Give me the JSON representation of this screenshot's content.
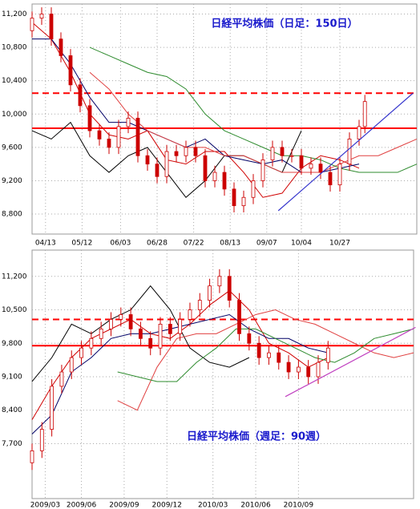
{
  "chart_data": [
    {
      "type": "candlestick",
      "title": "日経平均株価（日足：150日）",
      "x": [
        0,
        5,
        10,
        15,
        20,
        25,
        30,
        35,
        40,
        45,
        50,
        55,
        60,
        65,
        70,
        75,
        80,
        85,
        90,
        95,
        100,
        105,
        110,
        115,
        120,
        125,
        130,
        135,
        140,
        145,
        150,
        155,
        160,
        165,
        170,
        173
      ],
      "open": [
        11000,
        11150,
        11200,
        10900,
        10700,
        10350,
        10100,
        9800,
        9700,
        9600,
        9850,
        9950,
        9500,
        9400,
        9250,
        9550,
        9500,
        9600,
        9500,
        9200,
        9300,
        9100,
        8900,
        9000,
        9200,
        9450,
        9600,
        9500,
        9500,
        9350,
        9400,
        9300,
        9150,
        9400,
        9700,
        9850
      ],
      "high": [
        11230,
        11280,
        11280,
        10980,
        10780,
        10430,
        10180,
        9880,
        9780,
        9930,
        10030,
        10030,
        9580,
        9480,
        9630,
        9630,
        9680,
        9680,
        9580,
        9380,
        9380,
        9180,
        9080,
        9280,
        9530,
        9680,
        9680,
        9580,
        9580,
        9480,
        9480,
        9380,
        9480,
        9780,
        9930,
        10230
      ],
      "low": [
        10920,
        11070,
        10820,
        10620,
        10270,
        10020,
        9720,
        9620,
        9520,
        9520,
        9770,
        9420,
        9320,
        9170,
        9170,
        9420,
        9420,
        9420,
        9120,
        9120,
        9020,
        8820,
        8820,
        8920,
        9120,
        9370,
        9420,
        9420,
        9270,
        9270,
        9220,
        9070,
        9070,
        9320,
        9620,
        9770
      ],
      "close": [
        11150,
        11200,
        10900,
        10700,
        10350,
        10100,
        9800,
        9700,
        9600,
        9850,
        9950,
        9500,
        9400,
        9250,
        9550,
        9500,
        9600,
        9500,
        9200,
        9300,
        9100,
        8900,
        9000,
        9200,
        9450,
        9600,
        9500,
        9500,
        9350,
        9400,
        9300,
        9150,
        9400,
        9700,
        9850,
        10150
      ],
      "series": [
        {
          "color": "#d00000",
          "x": [
            0,
            10,
            20,
            30,
            40,
            50,
            60,
            70,
            80,
            90,
            100,
            110,
            120,
            130,
            140,
            150,
            160,
            170
          ],
          "values": [
            11100,
            10900,
            10500,
            10000,
            9750,
            9700,
            9800,
            9450,
            9400,
            9550,
            9550,
            9300,
            9000,
            9050,
            9350,
            9500,
            9450,
            9350
          ]
        },
        {
          "color": "#000066",
          "x": [
            0,
            10,
            20,
            30,
            40,
            50,
            60,
            70,
            80,
            90,
            100,
            110,
            120,
            130,
            140,
            150,
            160,
            170
          ],
          "values": [
            10900,
            10900,
            10600,
            10200,
            9900,
            9900,
            9800,
            9700,
            9600,
            9700,
            9500,
            9450,
            9400,
            9450,
            9300,
            9300,
            9350,
            9400
          ]
        },
        {
          "color": "#000000",
          "x": [
            0,
            10,
            20,
            30,
            40,
            50,
            60,
            70,
            80,
            90,
            100,
            110,
            120,
            130,
            140
          ],
          "values": [
            9800,
            9700,
            9900,
            9500,
            9300,
            9500,
            9600,
            9300,
            9000,
            9200,
            9500,
            9500,
            9400,
            9300,
            9800
          ]
        },
        {
          "color": "#e04040",
          "x": [
            30,
            40,
            50,
            60,
            70,
            80,
            90,
            100,
            110,
            120,
            130,
            140,
            150,
            160,
            170,
            180,
            190,
            200
          ],
          "values": [
            10500,
            10300,
            10000,
            9800,
            9700,
            9600,
            9600,
            9500,
            9500,
            9400,
            9300,
            9300,
            9300,
            9400,
            9500,
            9500,
            9600,
            9700
          ]
        },
        {
          "color": "#2e8b2e",
          "x": [
            30,
            40,
            50,
            60,
            70,
            80,
            90,
            100,
            110,
            120,
            130,
            140,
            150,
            160,
            170,
            180,
            190,
            200
          ],
          "values": [
            10800,
            10700,
            10600,
            10500,
            10450,
            10300,
            10000,
            9800,
            9700,
            9600,
            9500,
            9500,
            9450,
            9350,
            9300,
            9300,
            9300,
            9400
          ]
        }
      ],
      "reference_lines": [
        {
          "value": 9830,
          "color": "#ff0000",
          "style": "solid"
        },
        {
          "value": 10250,
          "color": "#ff0000",
          "style": "dashed"
        }
      ],
      "trend_line": {
        "color": "#3333cc",
        "x": [
          128,
          198
        ],
        "values": [
          8840,
          10250
        ]
      },
      "xlim": [
        0,
        200
      ],
      "ylim": [
        8560,
        11320
      ],
      "xticks": [
        {
          "value": 7,
          "label": "04/13"
        },
        {
          "value": 26,
          "label": "05/12"
        },
        {
          "value": 46,
          "label": "06/03"
        },
        {
          "value": 65,
          "label": "06/28"
        },
        {
          "value": 84,
          "label": "07/22"
        },
        {
          "value": 103,
          "label": "08/13"
        },
        {
          "value": 122,
          "label": "09/07"
        },
        {
          "value": 140,
          "label": "10/04"
        },
        {
          "value": 160,
          "label": "10/27"
        }
      ],
      "yticks": [
        {
          "value": 11200,
          "label": "11,200"
        },
        {
          "value": 10800,
          "label": "10,800"
        },
        {
          "value": 10400,
          "label": "10,400"
        },
        {
          "value": 10000,
          "label": "10,000"
        },
        {
          "value": 9600,
          "label": "9,600"
        },
        {
          "value": 9200,
          "label": "9,200"
        },
        {
          "value": 8800,
          "label": "8,800"
        }
      ],
      "grid": true
    },
    {
      "type": "candlestick",
      "title": "日経平均株価（週足：90週）",
      "x": [
        0,
        3,
        6,
        9,
        12,
        15,
        18,
        21,
        24,
        27,
        30,
        33,
        36,
        39,
        42,
        45,
        48,
        51,
        54,
        57,
        60,
        63,
        66,
        69,
        72,
        75,
        78,
        81,
        84,
        87,
        90
      ],
      "open": [
        7300,
        7550,
        8000,
        8900,
        9200,
        9500,
        9700,
        9900,
        10100,
        10300,
        10400,
        10100,
        9900,
        9700,
        10200,
        10000,
        10300,
        10500,
        10700,
        11000,
        11200,
        10700,
        10000,
        9800,
        9500,
        9600,
        9400,
        9200,
        9300,
        9100,
        9400
      ],
      "high": [
        7700,
        8150,
        9050,
        9350,
        9650,
        9850,
        10050,
        10250,
        10450,
        10550,
        10550,
        10250,
        10050,
        10350,
        10350,
        10450,
        10650,
        10850,
        11150,
        11350,
        11350,
        10850,
        10150,
        9950,
        9750,
        9750,
        9550,
        9450,
        9450,
        9550,
        9850
      ],
      "low": [
        7150,
        7400,
        7850,
        8750,
        9050,
        9350,
        9550,
        9750,
        9950,
        10150,
        9950,
        9750,
        9550,
        9550,
        9850,
        9850,
        10150,
        10350,
        10550,
        10850,
        10550,
        9850,
        9650,
        9350,
        9350,
        9250,
        9050,
        9050,
        8950,
        8950,
        9250
      ],
      "close": [
        7550,
        8000,
        8900,
        9200,
        9500,
        9700,
        9900,
        10100,
        10300,
        10400,
        10100,
        9900,
        9700,
        10200,
        10000,
        10300,
        10500,
        10700,
        11000,
        11200,
        10700,
        10000,
        9800,
        9500,
        9600,
        9400,
        9200,
        9300,
        9100,
        9400,
        9700
      ],
      "series": [
        {
          "color": "#d00000",
          "x": [
            0,
            6,
            12,
            18,
            24,
            30,
            36,
            42,
            48,
            54,
            60,
            66,
            72,
            78,
            84,
            90
          ],
          "values": [
            8200,
            8900,
            9500,
            9900,
            10100,
            10300,
            10000,
            9900,
            10200,
            10600,
            10900,
            10500,
            9800,
            9600,
            9300,
            9500
          ]
        },
        {
          "color": "#000066",
          "x": [
            0,
            6,
            12,
            18,
            24,
            30,
            36,
            42,
            48,
            54,
            60,
            66,
            72,
            78,
            84,
            90
          ],
          "values": [
            7900,
            8300,
            9200,
            9500,
            9900,
            10000,
            10000,
            10100,
            10200,
            10300,
            10400,
            10100,
            9900,
            9900,
            9700,
            9600
          ]
        },
        {
          "color": "#000000",
          "x": [
            0,
            6,
            12,
            18,
            24,
            30,
            36,
            42,
            48,
            54,
            60,
            66
          ],
          "values": [
            9000,
            9500,
            10200,
            10000,
            10300,
            10500,
            11000,
            10500,
            9700,
            9400,
            9300,
            9500
          ]
        },
        {
          "color": "#e04040",
          "x": [
            26,
            32,
            38,
            44,
            50,
            56,
            62,
            68,
            74,
            80,
            86,
            92,
            98,
            104,
            110,
            116
          ],
          "values": [
            8600,
            8400,
            9300,
            9900,
            10000,
            10000,
            10200,
            10400,
            10500,
            10300,
            10200,
            10000,
            9800,
            9600,
            9500,
            9600
          ]
        },
        {
          "color": "#2e8b2e",
          "x": [
            26,
            32,
            38,
            44,
            50,
            56,
            62,
            68,
            74,
            80,
            86,
            92,
            98,
            104,
            110,
            116
          ],
          "values": [
            9200,
            9100,
            9000,
            9000,
            9400,
            9700,
            10100,
            10100,
            9900,
            9700,
            9500,
            9400,
            9600,
            9900,
            10000,
            10100
          ]
        }
      ],
      "reference_lines": [
        {
          "value": 9750,
          "color": "#ff0000",
          "style": "solid"
        },
        {
          "value": 10300,
          "color": "#ff0000",
          "style": "dashed"
        }
      ],
      "trend_line": {
        "color": "#c040c0",
        "x": [
          77,
          116.6
        ],
        "values": [
          8683,
          10133
        ]
      },
      "xlim": [
        0,
        116
      ],
      "ylim": [
        6550,
        11750
      ],
      "xticks": [
        {
          "value": 4,
          "label": "2009/03"
        },
        {
          "value": 15,
          "label": "2009/06"
        },
        {
          "value": 28,
          "label": "2009/09"
        },
        {
          "value": 41,
          "label": "2009/12"
        },
        {
          "value": 55,
          "label": "2010/03"
        },
        {
          "value": 68,
          "label": "2010/06"
        },
        {
          "value": 81,
          "label": "2010/09"
        }
      ],
      "yticks": [
        {
          "value": 11200,
          "label": "11,200"
        },
        {
          "value": 10500,
          "label": "10,500"
        },
        {
          "value": 9800,
          "label": "9,800"
        },
        {
          "value": 9100,
          "label": "9,100"
        },
        {
          "value": 8400,
          "label": "8,400"
        },
        {
          "value": 7700,
          "label": "7,700"
        }
      ],
      "grid": true
    }
  ]
}
